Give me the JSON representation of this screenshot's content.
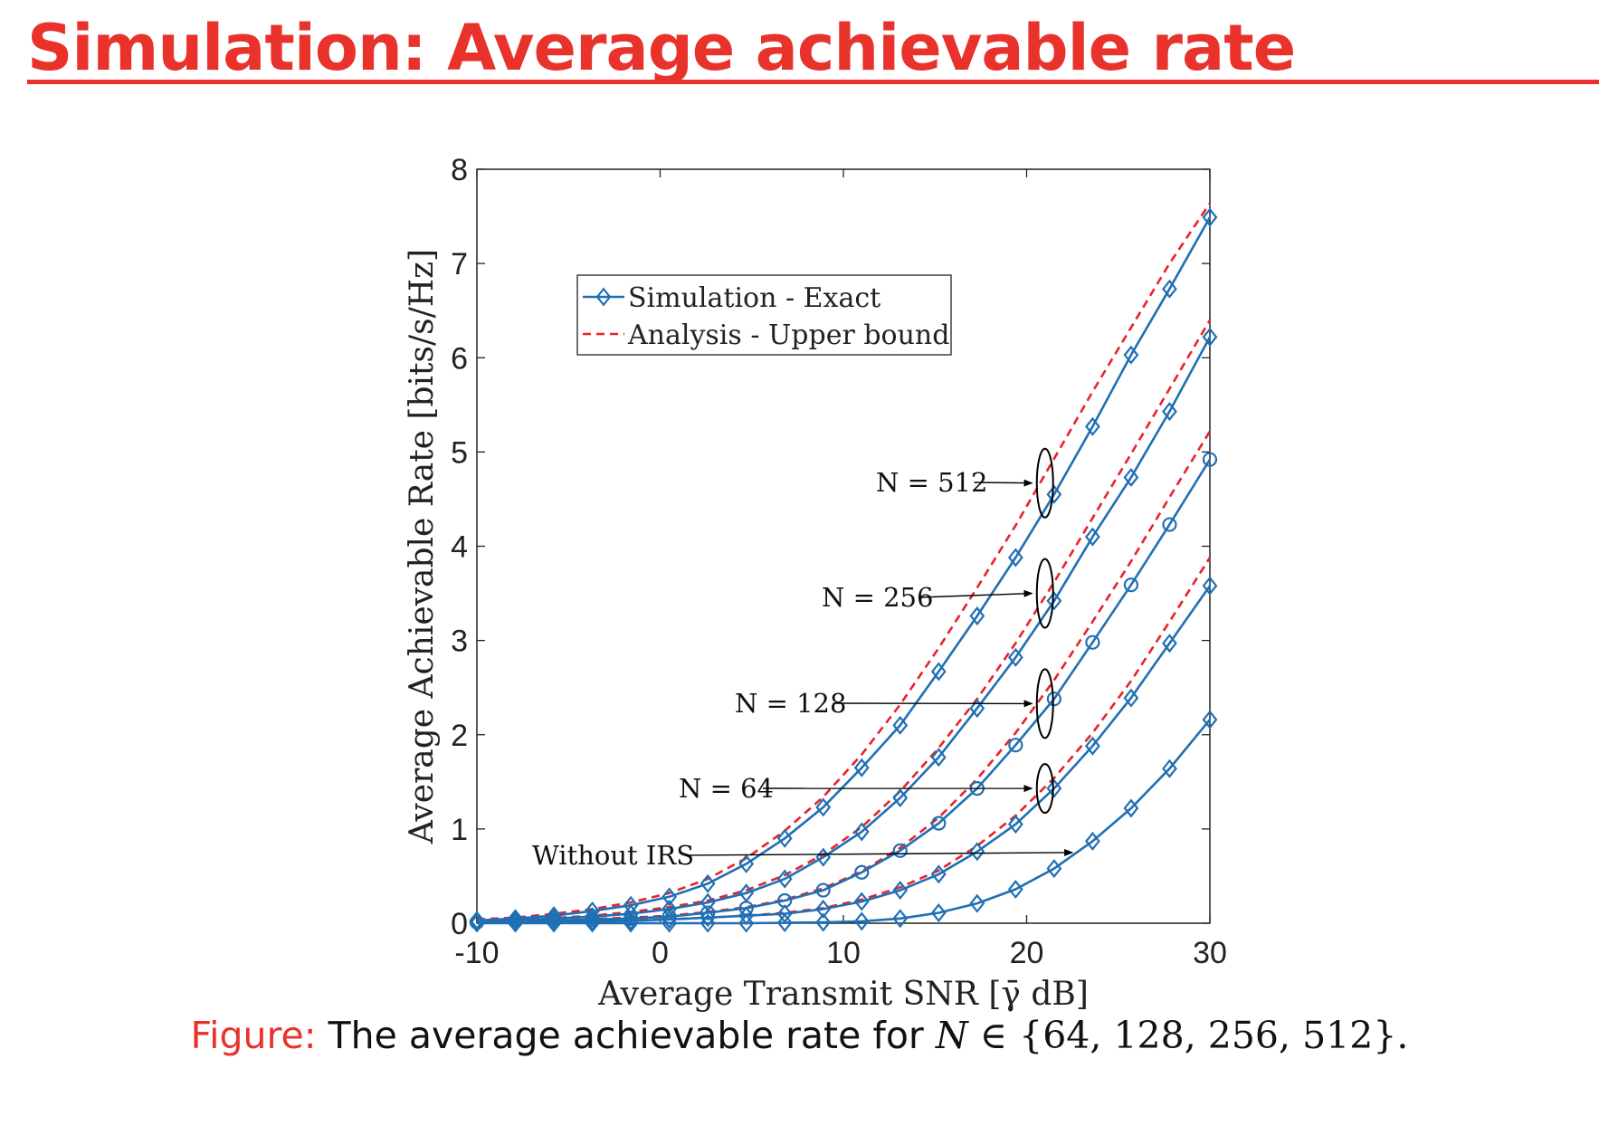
{
  "slide": {
    "title": "Simulation: Average achievable rate",
    "title_color": "#e8322b"
  },
  "caption": {
    "label": "Figure:",
    "text": "The average achievable rate for",
    "math_var": "N",
    "math_set": "∈ {64, 128, 256, 512}."
  },
  "chart_data": {
    "type": "line",
    "xlabel": "Average Transmit SNR [γ̄ dB]",
    "ylabel": "Average Achievable Rate [bits/s/Hz]",
    "xlim": [
      -10,
      30
    ],
    "ylim": [
      0,
      8
    ],
    "xticks": [
      -10,
      0,
      10,
      20,
      30
    ],
    "yticks": [
      0,
      1,
      2,
      3,
      4,
      5,
      6,
      7,
      8
    ],
    "grid": false,
    "legend": {
      "placement": "top-left",
      "entries": [
        {
          "label": "Simulation - Exact",
          "style": "solid-diamond",
          "color": "#1f6fb5"
        },
        {
          "label": "Analysis - Upper bound",
          "style": "dashed",
          "color": "#e8222a"
        }
      ]
    },
    "x": [
      -10,
      -7.9,
      -5.8,
      -3.7,
      -1.6,
      0.5,
      2.6,
      4.7,
      6.8,
      8.9,
      11,
      13.1,
      15.2,
      17.3,
      19.4,
      21.5,
      23.6,
      25.7,
      27.8,
      30
    ],
    "series": [
      {
        "role": "simulation",
        "marker": "diamond",
        "values": [
          0.03,
          0.05,
          0.08,
          0.13,
          0.19,
          0.28,
          0.42,
          0.63,
          0.9,
          1.23,
          1.65,
          2.1,
          2.67,
          3.26,
          3.88,
          4.55,
          5.27,
          6.03,
          6.73,
          7.49
        ]
      },
      {
        "role": "simulation",
        "marker": "diamond",
        "values": [
          0.02,
          0.03,
          0.05,
          0.07,
          0.1,
          0.15,
          0.22,
          0.32,
          0.47,
          0.7,
          0.97,
          1.33,
          1.76,
          2.28,
          2.82,
          3.42,
          4.1,
          4.73,
          5.43,
          6.22
        ]
      },
      {
        "role": "simulation",
        "marker": "circle",
        "values": [
          0.01,
          0.02,
          0.03,
          0.04,
          0.05,
          0.07,
          0.11,
          0.16,
          0.24,
          0.35,
          0.54,
          0.77,
          1.06,
          1.43,
          1.89,
          2.38,
          2.98,
          3.59,
          4.23,
          4.92
        ]
      },
      {
        "role": "simulation",
        "marker": "diamond",
        "values": [
          0.005,
          0.01,
          0.015,
          0.02,
          0.025,
          0.04,
          0.06,
          0.08,
          0.1,
          0.15,
          0.23,
          0.35,
          0.52,
          0.76,
          1.05,
          1.43,
          1.88,
          2.39,
          2.97,
          3.58
        ]
      },
      {
        "role": "simulation",
        "marker": "diamond",
        "values": [
          0,
          0,
          0,
          0,
          0,
          0,
          0,
          0,
          0.005,
          0.01,
          0.02,
          0.05,
          0.11,
          0.21,
          0.36,
          0.58,
          0.87,
          1.22,
          1.64,
          2.16
        ]
      },
      {
        "role": "analysis",
        "values": [
          0.04,
          0.06,
          0.1,
          0.15,
          0.22,
          0.32,
          0.47,
          0.69,
          0.98,
          1.34,
          1.79,
          2.32,
          2.92,
          3.56,
          4.22,
          4.93,
          5.64,
          6.32,
          7.0,
          7.64
        ]
      },
      {
        "role": "analysis",
        "values": [
          0.02,
          0.035,
          0.055,
          0.08,
          0.12,
          0.17,
          0.24,
          0.35,
          0.51,
          0.73,
          1.02,
          1.4,
          1.86,
          2.38,
          2.97,
          3.62,
          4.3,
          4.98,
          5.67,
          6.4
        ]
      },
      {
        "role": "analysis",
        "values": [
          0.01,
          0.02,
          0.03,
          0.045,
          0.06,
          0.08,
          0.12,
          0.17,
          0.25,
          0.37,
          0.55,
          0.8,
          1.12,
          1.53,
          2.02,
          2.58,
          3.2,
          3.84,
          4.52,
          5.22
        ]
      },
      {
        "role": "analysis",
        "values": [
          0.005,
          0.01,
          0.015,
          0.02,
          0.03,
          0.04,
          0.06,
          0.08,
          0.11,
          0.16,
          0.25,
          0.38,
          0.56,
          0.82,
          1.14,
          1.54,
          2.02,
          2.57,
          3.2,
          3.88
        ]
      }
    ],
    "annotations": [
      {
        "text": "N = 512",
        "arrow_to": [
          20.3,
          4.67
        ],
        "ellipse_at": [
          21,
          4.67
        ]
      },
      {
        "text": "N = 256",
        "arrow_to": [
          20.3,
          3.5
        ],
        "ellipse_at": [
          21,
          3.5
        ]
      },
      {
        "text": "N = 128",
        "arrow_to": [
          20.3,
          2.33
        ],
        "ellipse_at": [
          21,
          2.33
        ]
      },
      {
        "text": "N = 64",
        "arrow_to": [
          20.3,
          1.43
        ],
        "ellipse_at": [
          21,
          1.43
        ]
      },
      {
        "text": "Without IRS",
        "arrow_to": [
          22.5,
          0.75
        ]
      }
    ],
    "colors": {
      "simulation": "#1f6fb5",
      "analysis": "#e8222a"
    }
  }
}
